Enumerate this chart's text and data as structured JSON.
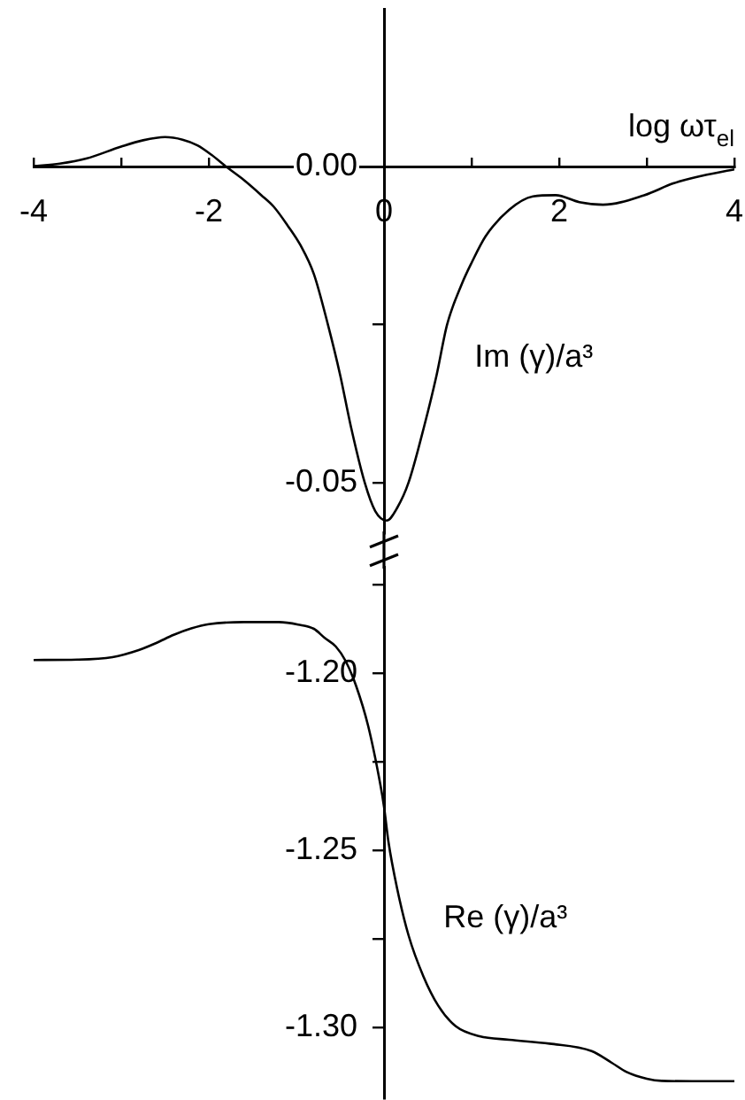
{
  "chart_data": [
    {
      "type": "line",
      "xlabel": "log ωτ$_{el}$",
      "x": [
        -4.0,
        -3.7,
        -3.4,
        -3.0,
        -2.75,
        -2.5,
        -2.3,
        -2.13,
        -1.97,
        -1.8,
        -1.6,
        -1.4,
        -1.26,
        -1.1,
        -0.95,
        -0.8,
        -0.64,
        -0.5,
        -0.38,
        -0.22,
        -0.1,
        0.03,
        0.15,
        0.28,
        0.46,
        0.6,
        0.72,
        0.89,
        1.0,
        1.16,
        1.43,
        1.7,
        1.96,
        2.23,
        2.5,
        2.97,
        3.31,
        3.64,
        4.0
      ],
      "series": [
        {
          "name": "Im (γ)/a³",
          "color": "#000000",
          "values": [
            0.0001,
            0.0005,
            0.0013,
            0.0032,
            0.0042,
            0.0047,
            0.0043,
            0.0034,
            0.0019,
            0.0,
            -0.0021,
            -0.0045,
            -0.0063,
            -0.0093,
            -0.0125,
            -0.017,
            -0.025,
            -0.033,
            -0.041,
            -0.05,
            -0.0545,
            -0.056,
            -0.054,
            -0.05,
            -0.041,
            -0.033,
            -0.025,
            -0.0185,
            -0.0152,
            -0.011,
            -0.0068,
            -0.0047,
            -0.0045,
            -0.0056,
            -0.006,
            -0.0045,
            -0.0026,
            -0.0014,
            -0.0004
          ]
        }
      ],
      "xlim": [
        -4,
        4
      ],
      "ylim": [
        -0.058,
        0.025
      ],
      "xticks": [
        -4,
        {
          "value": -3,
          "label": null
        },
        -2,
        {
          "value": -1,
          "label": null
        },
        0,
        {
          "value": 1,
          "label": null
        },
        2,
        {
          "value": 3,
          "label": null
        },
        4
      ],
      "yticks": [
        {
          "value": 0,
          "label": "0.00"
        },
        {
          "value": -0.025,
          "label": null
        },
        {
          "value": -0.05,
          "label": "-0.05"
        }
      ]
    },
    {
      "type": "line",
      "x": [
        -4.0,
        -3.5,
        -3.1,
        -2.8,
        -2.6,
        -2.4,
        -2.2,
        -2.0,
        -1.6,
        -1.2,
        -0.98,
        -0.8,
        -0.68,
        -0.55,
        -0.44,
        -0.32,
        -0.18,
        -0.04,
        0.0,
        0.05,
        0.15,
        0.28,
        0.45,
        0.62,
        0.82,
        1.09,
        1.43,
        1.89,
        2.37,
        2.6,
        2.77,
        3.0,
        3.17,
        3.6,
        4.0
      ],
      "series": [
        {
          "name": "Re (γ)/a³",
          "color": "#000000",
          "values": [
            -1.1963,
            -1.1962,
            -1.1955,
            -1.1935,
            -1.1915,
            -1.1892,
            -1.1874,
            -1.1862,
            -1.1856,
            -1.1856,
            -1.1863,
            -1.1875,
            -1.19,
            -1.1925,
            -1.1965,
            -1.2035,
            -1.215,
            -1.2317,
            -1.2377,
            -1.2475,
            -1.2608,
            -1.274,
            -1.2856,
            -1.2939,
            -1.2997,
            -1.3025,
            -1.3035,
            -1.3046,
            -1.3067,
            -1.31,
            -1.3126,
            -1.3145,
            -1.3151,
            -1.3152,
            -1.3152
          ]
        }
      ],
      "xlim": [
        -4,
        4
      ],
      "ylim": [
        -1.32,
        -1.17
      ],
      "yticks": [
        {
          "value": -1.175,
          "label": null
        },
        {
          "value": -1.2,
          "label": "-1.20"
        },
        {
          "value": -1.225,
          "label": null
        },
        {
          "value": -1.25,
          "label": "-1.25"
        },
        {
          "value": -1.275,
          "label": null
        },
        {
          "value": -1.3,
          "label": "-1.30"
        }
      ],
      "tick_labels": "y"
    }
  ]
}
